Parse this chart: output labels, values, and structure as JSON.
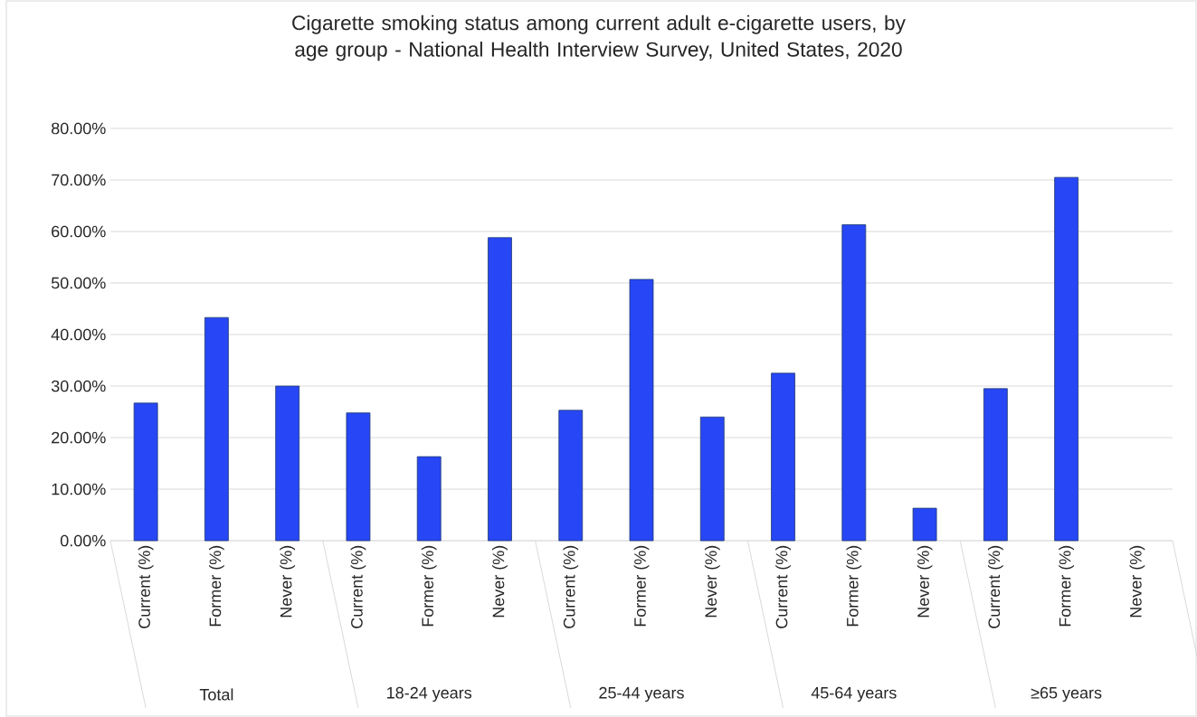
{
  "chart_data": {
    "type": "bar",
    "title": "Cigarette smoking status among current adult e-cigarette users, by age group - National Health Interview Survey, United States, 2020",
    "categories": [
      "Current (%)",
      "Former (%)",
      "Never (%)",
      "Current (%)",
      "Former (%)",
      "Never (%)",
      "Current (%)",
      "Former (%)",
      "Never (%)",
      "Current (%)",
      "Former (%)",
      "Never (%)",
      "Current (%)",
      "Former (%)",
      "Never (%)"
    ],
    "values": [
      26.7,
      43.3,
      30.0,
      24.8,
      16.3,
      58.8,
      25.3,
      50.7,
      24.0,
      32.5,
      61.3,
      6.3,
      29.5,
      70.5,
      null
    ],
    "color": "#2746f5",
    "ylim": [
      0,
      80
    ],
    "yticks": [
      {
        "value": 0,
        "label": "0.00%"
      },
      {
        "value": 10,
        "label": "10.00%"
      },
      {
        "value": 20,
        "label": "20.00%"
      },
      {
        "value": 30,
        "label": "30.00%"
      },
      {
        "value": 40,
        "label": "40.00%"
      },
      {
        "value": 50,
        "label": "50.00%"
      },
      {
        "value": 60,
        "label": "60.00%"
      },
      {
        "value": 70,
        "label": "70.00%"
      },
      {
        "value": 80,
        "label": "80.00%"
      }
    ],
    "grid": "y",
    "annotations": [
      "Total",
      "18-24 years",
      "25-44 years",
      "45-64 years",
      "≥65 years"
    ]
  }
}
